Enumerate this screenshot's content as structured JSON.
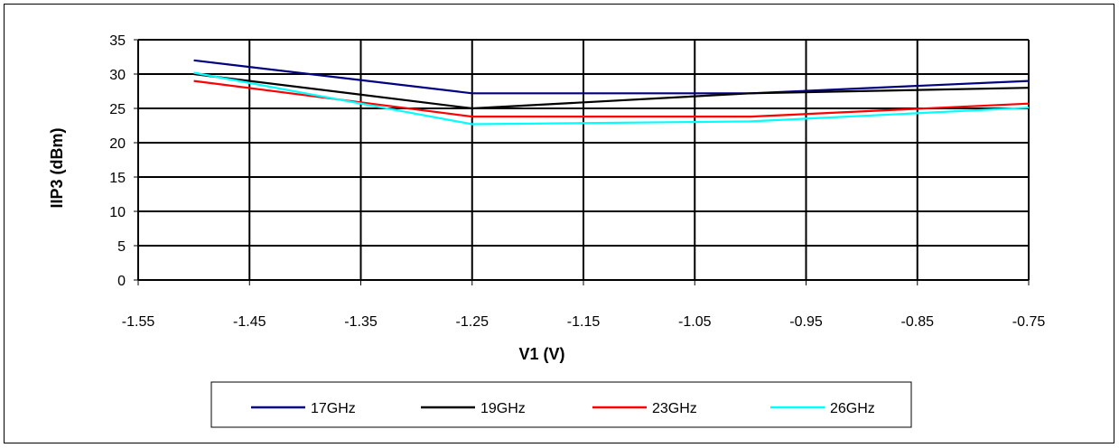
{
  "chart_data": {
    "type": "line",
    "xlabel": "V1 (V)",
    "ylabel": "IIP3 (dBm)",
    "xlim": [
      -1.55,
      -0.75
    ],
    "ylim": [
      0,
      35
    ],
    "xticks": [
      "-1.55",
      "-1.45",
      "-1.35",
      "-1.25",
      "-1.15",
      "-1.05",
      "-0.95",
      "-0.85",
      "-0.75"
    ],
    "yticks": [
      "0",
      "5",
      "10",
      "15",
      "20",
      "25",
      "30",
      "35"
    ],
    "grid": true,
    "legend_position": "bottom",
    "series": [
      {
        "name": "17GHz",
        "color": "#000080",
        "x": [
          -1.5,
          -1.25,
          -1.0,
          -0.75
        ],
        "y": [
          32,
          27.2,
          27.2,
          29
        ]
      },
      {
        "name": "19GHz",
        "color": "#000000",
        "x": [
          -1.5,
          -1.25,
          -1.0,
          -0.75
        ],
        "y": [
          30,
          25,
          27.2,
          28
        ]
      },
      {
        "name": "23GHz",
        "color": "#ff0000",
        "x": [
          -1.5,
          -1.25,
          -1.0,
          -0.75
        ],
        "y": [
          29,
          23.8,
          23.8,
          25.7
        ]
      },
      {
        "name": "26GHz",
        "color": "#00ffff",
        "x": [
          -1.5,
          -1.25,
          -1.0,
          -0.75
        ],
        "y": [
          30.2,
          22.7,
          23.1,
          25.1
        ]
      }
    ]
  }
}
